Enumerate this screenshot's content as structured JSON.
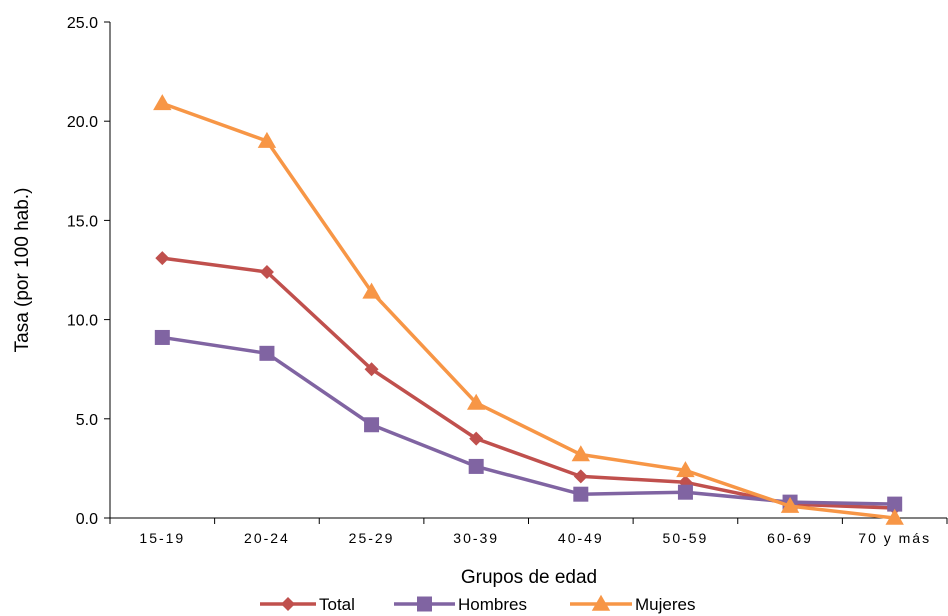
{
  "chart_data": {
    "type": "line",
    "title": "",
    "xlabel": "Grupos de edad",
    "ylabel": "Tasa (por 100 hab.)",
    "ylim": [
      0,
      25
    ],
    "yticks": [
      "0.0",
      "5.0",
      "10.0",
      "15.0",
      "20.0",
      "25.0"
    ],
    "categories": [
      "15-19",
      "20-24",
      "25-29",
      "30-39",
      "40-49",
      "50-59",
      "60-69",
      "70 y más"
    ],
    "grid": false,
    "legend_position": "bottom",
    "series": [
      {
        "name": "Total",
        "color": "#C0504D",
        "marker": "diamond",
        "values": [
          13.1,
          12.4,
          7.5,
          4.0,
          2.1,
          1.8,
          0.7,
          0.5
        ]
      },
      {
        "name": "Hombres",
        "color": "#8064A2",
        "marker": "square",
        "values": [
          9.1,
          8.3,
          4.7,
          2.6,
          1.2,
          1.3,
          0.8,
          0.7
        ]
      },
      {
        "name": "Mujeres",
        "color": "#F79646",
        "marker": "triangle",
        "values": [
          20.9,
          19.0,
          11.4,
          5.8,
          3.2,
          2.4,
          0.6,
          0.0
        ]
      }
    ]
  }
}
